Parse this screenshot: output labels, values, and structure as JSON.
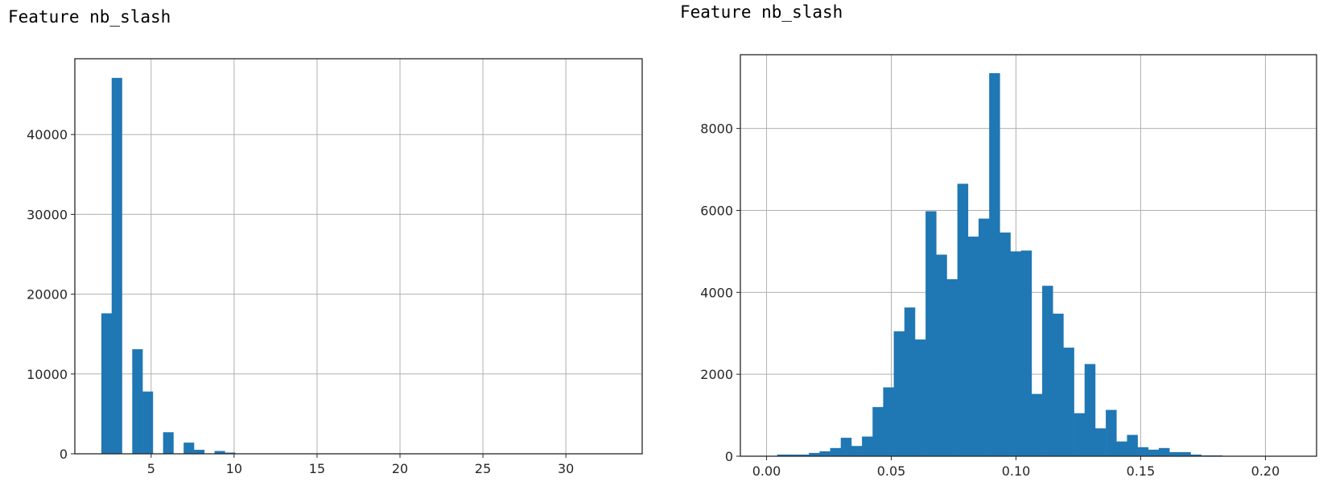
{
  "chart_data": [
    {
      "type": "histogram",
      "title": "Feature nb_slash",
      "xlim": [
        0.4,
        34.6
      ],
      "ylim": [
        0,
        49500
      ],
      "xticks": [
        5,
        10,
        15,
        20,
        25,
        30
      ],
      "xtick_labels": [
        "5",
        "10",
        "15",
        "20",
        "25",
        "30"
      ],
      "yticks": [
        0,
        10000,
        20000,
        30000,
        40000
      ],
      "ytick_labels": [
        "0",
        "10000",
        "20000",
        "30000",
        "40000"
      ],
      "grid": true,
      "bar_color": "#1f77b4",
      "bins": [
        {
          "x0": 2.0,
          "x1": 2.62,
          "count": 17600
        },
        {
          "x0": 2.62,
          "x1": 3.24,
          "count": 47100
        },
        {
          "x0": 3.24,
          "x1": 3.86,
          "count": 0
        },
        {
          "x0": 3.86,
          "x1": 4.48,
          "count": 13100
        },
        {
          "x0": 4.48,
          "x1": 5.1,
          "count": 7800
        },
        {
          "x0": 5.1,
          "x1": 5.72,
          "count": 0
        },
        {
          "x0": 5.72,
          "x1": 6.34,
          "count": 2700
        },
        {
          "x0": 6.34,
          "x1": 6.96,
          "count": 0
        },
        {
          "x0": 6.96,
          "x1": 7.58,
          "count": 1400
        },
        {
          "x0": 7.58,
          "x1": 8.2,
          "count": 500
        },
        {
          "x0": 8.2,
          "x1": 8.82,
          "count": 0
        },
        {
          "x0": 8.82,
          "x1": 9.44,
          "count": 350
        },
        {
          "x0": 9.44,
          "x1": 10.06,
          "count": 150
        },
        {
          "x0": 10.06,
          "x1": 10.68,
          "count": 50
        },
        {
          "x0": 10.68,
          "x1": 11.3,
          "count": 20
        },
        {
          "x0": 11.3,
          "x1": 11.92,
          "count": 10
        }
      ]
    },
    {
      "type": "histogram",
      "title": "Feature nb_slash",
      "xlim": [
        -0.0105,
        0.2205
      ],
      "ylim": [
        0,
        9800
      ],
      "xticks": [
        0.0,
        0.05,
        0.1,
        0.15,
        0.2
      ],
      "xtick_labels": [
        "0.00",
        "0.05",
        "0.10",
        "0.15",
        "0.20"
      ],
      "yticks": [
        0,
        2000,
        4000,
        6000,
        8000
      ],
      "ytick_labels": [
        "0",
        "2000",
        "4000",
        "6000",
        "8000"
      ],
      "grid": true,
      "bar_color": "#1f77b4",
      "bin_start": 0.0,
      "bin_width": 0.00425,
      "counts": [
        10,
        40,
        40,
        40,
        80,
        120,
        200,
        450,
        250,
        480,
        1200,
        1680,
        3050,
        3630,
        2850,
        5980,
        4920,
        4320,
        6650,
        5360,
        5800,
        9350,
        5460,
        5000,
        5020,
        1520,
        4160,
        3480,
        2650,
        1050,
        2250,
        680,
        1130,
        360,
        520,
        220,
        160,
        200,
        100,
        100,
        40,
        20,
        20,
        0,
        0,
        0,
        0,
        0,
        0,
        0
      ]
    }
  ]
}
